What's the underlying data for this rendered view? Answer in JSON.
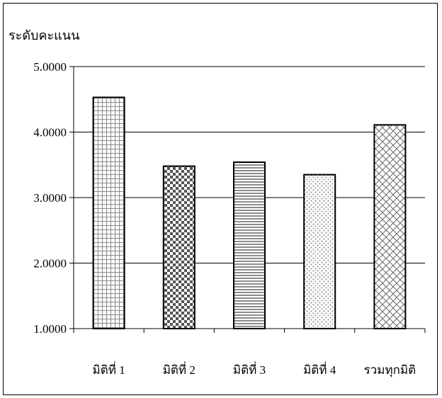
{
  "chart_data": {
    "type": "bar",
    "ylabel": "ระดับคะแนน",
    "xlabel": "",
    "title": "",
    "categories": [
      "มิติที่ 1",
      "มิติที่ 2",
      "มิติที่ 3",
      "มิติที่ 4",
      "รวมทุกมิติ"
    ],
    "values": [
      4.53,
      3.48,
      3.54,
      3.35,
      4.11
    ],
    "ylim": [
      1.0,
      5.0
    ],
    "yticks": [
      1.0,
      2.0,
      3.0,
      4.0,
      5.0
    ],
    "ytick_labels": [
      "1.0000",
      "2.0000",
      "3.0000",
      "4.0000",
      "5.0000"
    ],
    "grid": "horizontal",
    "legend": "none",
    "bar_patterns": [
      "grid",
      "checker",
      "horizontal-lines",
      "dots",
      "diagonal-crosshatch"
    ]
  }
}
